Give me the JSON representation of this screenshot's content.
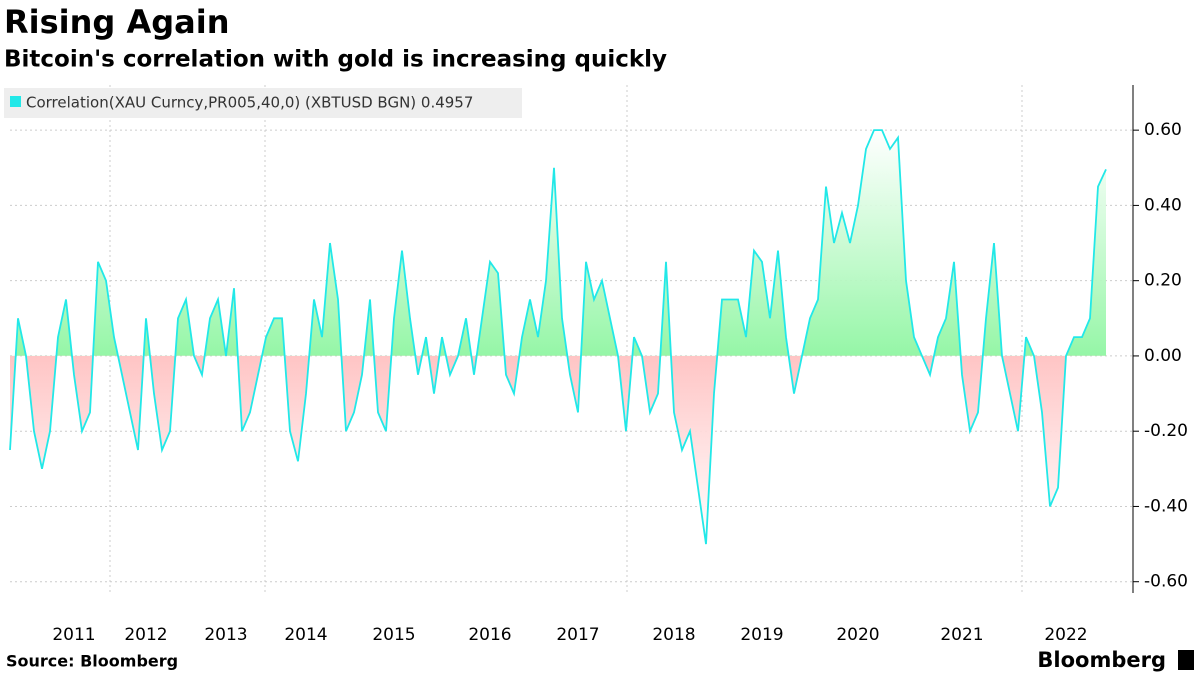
{
  "chart_data": {
    "type": "area",
    "title": "Rising Again",
    "subtitle": "Bitcoin's correlation with gold is increasing quickly",
    "source": "Source: Bloomberg",
    "brand": "Bloomberg",
    "categories": [
      null,
      null,
      null,
      null,
      null,
      null,
      null,
      null,
      "2011",
      null,
      null,
      null,
      null,
      null,
      null,
      null,
      null,
      "2012",
      null,
      null,
      null,
      null,
      null,
      null,
      null,
      null,
      null,
      "2013",
      null,
      null,
      null,
      null,
      null,
      null,
      null,
      null,
      null,
      "2014",
      null,
      null,
      null,
      null,
      null,
      null,
      null,
      null,
      null,
      null,
      "2015",
      null,
      null,
      null,
      null,
      null,
      null,
      null,
      null,
      null,
      null,
      null,
      "2016",
      null,
      null,
      null,
      null,
      null,
      null,
      null,
      null,
      null,
      null,
      "2017",
      null,
      null,
      null,
      null,
      null,
      null,
      null,
      null,
      null,
      null,
      null,
      "2018",
      null,
      null,
      null,
      null,
      null,
      null,
      null,
      null,
      null,
      null,
      "2019",
      null,
      null,
      null,
      null,
      null,
      null,
      null,
      null,
      null,
      null,
      null,
      "2020",
      null,
      null,
      null,
      null,
      null,
      null,
      null,
      null,
      null,
      null,
      null,
      null,
      "2021",
      null,
      null,
      null,
      null,
      null,
      null,
      null,
      null,
      null,
      null,
      null,
      null,
      "2022",
      null,
      null,
      null,
      null,
      null
    ],
    "series": [
      {
        "name": "Correlation(XAU Curncy,PR005,40,0) (XBTUSD BGN) 0.4957",
        "color": "#22e8e8",
        "values": [
          -0.25,
          0.1,
          0.0,
          -0.2,
          -0.3,
          -0.2,
          0.05,
          0.15,
          -0.05,
          -0.2,
          -0.15,
          0.25,
          0.2,
          0.05,
          -0.05,
          -0.15,
          -0.25,
          0.1,
          -0.1,
          -0.25,
          -0.2,
          0.1,
          0.15,
          0.0,
          -0.05,
          0.1,
          0.15,
          0.0,
          0.18,
          -0.2,
          -0.15,
          -0.05,
          0.05,
          0.1,
          0.1,
          -0.2,
          -0.28,
          -0.1,
          0.15,
          0.05,
          0.3,
          0.15,
          -0.2,
          -0.15,
          -0.05,
          0.15,
          -0.15,
          -0.2,
          0.1,
          0.28,
          0.1,
          -0.05,
          0.05,
          -0.1,
          0.05,
          -0.05,
          0.0,
          0.1,
          -0.05,
          0.1,
          0.25,
          0.22,
          -0.05,
          -0.1,
          0.05,
          0.15,
          0.05,
          0.2,
          0.5,
          0.1,
          -0.05,
          -0.15,
          0.25,
          0.15,
          0.2,
          0.1,
          0.0,
          -0.2,
          0.05,
          0.0,
          -0.15,
          -0.1,
          0.25,
          -0.15,
          -0.25,
          -0.2,
          -0.35,
          -0.5,
          -0.1,
          0.15,
          0.15,
          0.15,
          0.05,
          0.28,
          0.25,
          0.1,
          0.28,
          0.05,
          -0.1,
          0.0,
          0.1,
          0.15,
          0.45,
          0.3,
          0.38,
          0.3,
          0.4,
          0.55,
          0.6,
          0.6,
          0.55,
          0.58,
          0.2,
          0.05,
          0.0,
          -0.05,
          0.05,
          0.1,
          0.25,
          -0.05,
          -0.2,
          -0.15,
          0.1,
          0.3,
          0.0,
          -0.1,
          -0.2,
          0.05,
          0.0,
          -0.15,
          -0.4,
          -0.35,
          0.0,
          0.05,
          0.05,
          0.1,
          0.45,
          0.4957
        ]
      }
    ],
    "pos_color": "#33ee55",
    "neg_color": "#ff7777",
    "ylim": [
      -0.63,
      0.72
    ],
    "yticks": [
      {
        "value": 0.6,
        "label": "0.60"
      },
      {
        "value": 0.4,
        "label": "0.40"
      },
      {
        "value": 0.2,
        "label": "0.20"
      },
      {
        "value": 0,
        "label": "0.00"
      },
      {
        "value": -0.2,
        "label": "-0.20"
      },
      {
        "value": -0.4,
        "label": "-0.40"
      },
      {
        "value": -0.6,
        "label": "-0.60"
      }
    ],
    "grid": true
  }
}
